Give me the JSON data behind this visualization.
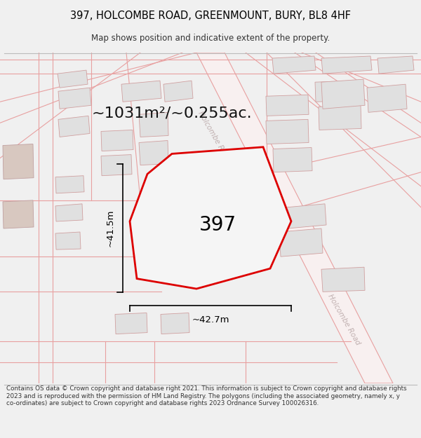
{
  "title_line1": "397, HOLCOMBE ROAD, GREENMOUNT, BURY, BL8 4HF",
  "title_line2": "Map shows position and indicative extent of the property.",
  "area_text": "~1031m²/~0.255ac.",
  "label_397": "397",
  "dim_width": "~42.7m",
  "dim_height": "~41.5m",
  "footer_text": "Contains OS data © Crown copyright and database right 2021. This information is subject to Crown copyright and database rights 2023 and is reproduced with the permission of HM Land Registry. The polygons (including the associated geometry, namely x, y co-ordinates) are subject to Crown copyright and database rights 2023 Ordnance Survey 100026316.",
  "bg_color": "#f0f0f0",
  "map_bg": "#f0f0f0",
  "building_fill": "#e0e0e0",
  "building_edge": "#d0a0a0",
  "road_line_color": "#e8a0a0",
  "property_line_color": "#dd0000",
  "property_fill": "#f5f5f5",
  "dim_line_color": "#000000",
  "text_color": "#000000",
  "road_label_color": "#c0b0b0",
  "footer_color": "#333333",
  "title_color": "#000000",
  "area_color": "#111111"
}
